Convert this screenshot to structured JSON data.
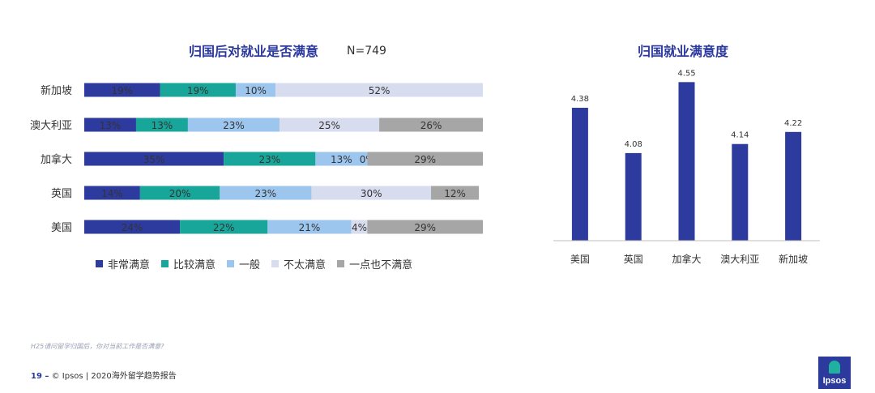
{
  "left_title": "归国后对就业是否满意",
  "left_note_n": "N=749",
  "right_title": "归国就业满意度",
  "legend": [
    {
      "label": "非常满意",
      "color": "#2e3b9e"
    },
    {
      "label": "比较满意",
      "color": "#19a69a"
    },
    {
      "label": "一般",
      "color": "#9dc6ee"
    },
    {
      "label": "不太满意",
      "color": "#d8dcef"
    },
    {
      "label": "一点也不满意",
      "color": "#a6a6a6"
    }
  ],
  "chart_data": [
    {
      "type": "bar",
      "orientation": "horizontal",
      "stacked": true,
      "title": "归国后对就业是否满意",
      "categories": [
        "新加坡",
        "澳大利亚",
        "加拿大",
        "英国",
        "美国"
      ],
      "series": [
        {
          "name": "非常满意",
          "values": [
            19,
            13,
            35,
            14,
            24
          ],
          "labels": [
            "19%",
            "13%",
            "35%",
            "14%",
            "24%"
          ]
        },
        {
          "name": "比较满意",
          "values": [
            19,
            13,
            23,
            20,
            22
          ],
          "labels": [
            "19%",
            "13%",
            "23%",
            "20%",
            "22%"
          ]
        },
        {
          "name": "一般",
          "values": [
            10,
            23,
            13,
            23,
            21
          ],
          "labels": [
            "10%",
            "23%",
            "13%",
            "23%",
            "21%"
          ]
        },
        {
          "name": "不太满意",
          "values": [
            52,
            25,
            0,
            30,
            4
          ],
          "labels": [
            "52%",
            "25%",
            "0%",
            "30%",
            "4%"
          ]
        },
        {
          "name": "一点也不满意",
          "values": [
            0,
            26,
            29,
            12,
            29
          ],
          "labels": [
            "",
            "26%",
            "29%",
            "12%",
            "29%"
          ]
        }
      ],
      "legend_position": "bottom"
    },
    {
      "type": "bar",
      "title": "归国就业满意度",
      "categories": [
        "美国",
        "英国",
        "加拿大",
        "澳大利亚",
        "新加坡"
      ],
      "values": [
        4.38,
        4.08,
        4.55,
        4.14,
        4.22
      ],
      "value_labels": [
        "4.38",
        "4.08",
        "4.55",
        "4.14",
        "4.22"
      ],
      "ylim": [
        3.5,
        4.6
      ],
      "color": "#2e3b9e"
    }
  ],
  "note": "H25请问留学归国后，你对当前工作是否满意?",
  "footer": {
    "page": "19 –",
    "text": "© Ipsos | 2020海外留学趋势报告"
  },
  "logo_text": "Ipsos"
}
